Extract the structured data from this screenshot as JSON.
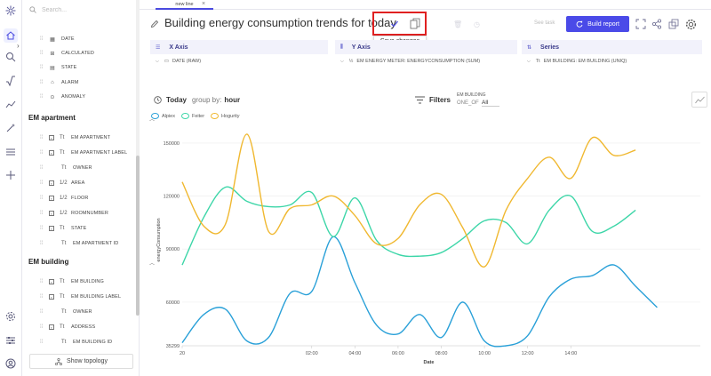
{
  "search": {
    "placeholder": "Search..."
  },
  "sidebar": {
    "fields_top": [
      {
        "label": "DATE",
        "icon": "calendar-icon"
      },
      {
        "label": "CALCULATED",
        "icon": "calculated-icon"
      },
      {
        "label": "STATE",
        "icon": "state-icon"
      },
      {
        "label": "ALARM",
        "icon": "alarm-icon"
      },
      {
        "label": "ANOMALY",
        "icon": "anomaly-icon"
      }
    ],
    "groups": [
      {
        "title": "EM apartment",
        "fields": [
          {
            "label": "EM APARTMENT",
            "icon": "text-icon",
            "type": "Tt"
          },
          {
            "label": "EM APARTMENT LABEL",
            "icon": "text-icon",
            "type": "Tt"
          },
          {
            "label": "OWNER",
            "icon": "text-icon",
            "type": "Tt"
          },
          {
            "label": "AREA",
            "icon": "numeric-icon",
            "type": "1/2"
          },
          {
            "label": "FLOOR",
            "icon": "numeric-icon",
            "type": "1/2"
          },
          {
            "label": "ROOMNUMBER",
            "icon": "numeric-icon",
            "type": "1/2"
          },
          {
            "label": "STATE",
            "icon": "text-icon",
            "type": "Tt"
          },
          {
            "label": "EM APARTMENT ID",
            "icon": "text-icon",
            "type": "Tt"
          }
        ]
      },
      {
        "title": "EM building",
        "fields": [
          {
            "label": "EM BUILDING",
            "icon": "text-icon",
            "type": "Tt"
          },
          {
            "label": "EM BUILDING LABEL",
            "icon": "text-icon",
            "type": "Tt"
          },
          {
            "label": "OWNER",
            "icon": "text-icon",
            "type": "Tt"
          },
          {
            "label": "ADDRESS",
            "icon": "text-icon",
            "type": "Tt"
          },
          {
            "label": "EM BUILDING ID",
            "icon": "text-icon",
            "type": "Tt"
          }
        ]
      }
    ],
    "topology_button": "Show topology"
  },
  "tabs": [
    {
      "label": "new line",
      "active": true
    }
  ],
  "report": {
    "title": "Building energy consumption trends for today",
    "tooltip": "Save changes",
    "see_task": "See task",
    "build_button": "Build report"
  },
  "axes": {
    "x": {
      "label": "X Axis",
      "value": "DATE (RAW)"
    },
    "y": {
      "label": "Y Axis",
      "value": "EM ENERGY METER: ENERGYCONSUMPTION (SUM)"
    },
    "series": {
      "label": "Series",
      "value": "EM BUILDING: EM BUILDING (UNIQ)"
    }
  },
  "controls": {
    "period": "Today",
    "group_by_label": "group by:",
    "group_by_value": "hour",
    "filters_label": "Filters",
    "filter_field": "EM BUILDING",
    "filter_operator": "ONE_OF",
    "filter_value": "All"
  },
  "colors": {
    "accent": "#4a4ae8",
    "highlight": "#e02020"
  },
  "chart_data": {
    "type": "line",
    "xlabel": "Date",
    "ylabel": "energyConsumption",
    "ylim": [
      35299,
      160000
    ],
    "xlim": [
      20,
      44
    ],
    "x_ticks": [
      20,
      26,
      28,
      30,
      32,
      34,
      36,
      38
    ],
    "x_tick_labels": [
      "20",
      "02:00",
      "04:00",
      "06:00",
      "08:00",
      "10:00",
      "12:00",
      "14:00"
    ],
    "y_ticks": [
      35299,
      60000,
      90000,
      120000,
      150000
    ],
    "y_tick_labels": [
      "35299",
      "60000",
      "90000",
      "120000",
      "150000"
    ],
    "series": [
      {
        "name": "Alpiex",
        "color": "#29a0d8",
        "points": [
          [
            20,
            37000
          ],
          [
            21,
            53000
          ],
          [
            22,
            56000
          ],
          [
            23,
            38000
          ],
          [
            24,
            40000
          ],
          [
            25,
            65000
          ],
          [
            26,
            66000
          ],
          [
            27,
            97000
          ],
          [
            28,
            71000
          ],
          [
            29,
            47000
          ],
          [
            30,
            42000
          ],
          [
            31,
            53000
          ],
          [
            32,
            40000
          ],
          [
            33,
            60000
          ],
          [
            34,
            38000
          ],
          [
            35,
            35299
          ],
          [
            36,
            41000
          ],
          [
            37,
            63000
          ],
          [
            38,
            73000
          ],
          [
            39,
            75000
          ],
          [
            40,
            81000
          ],
          [
            41,
            69000
          ],
          [
            42,
            57000
          ]
        ]
      },
      {
        "name": "Feiter",
        "color": "#3dd6a8",
        "points": [
          [
            20,
            81000
          ],
          [
            21,
            108000
          ],
          [
            22,
            125000
          ],
          [
            23,
            117000
          ],
          [
            24,
            114000
          ],
          [
            25,
            115000
          ],
          [
            26,
            122000
          ],
          [
            27,
            97000
          ],
          [
            28,
            119000
          ],
          [
            29,
            95000
          ],
          [
            30,
            87000
          ],
          [
            31,
            86000
          ],
          [
            32,
            88000
          ],
          [
            33,
            96000
          ],
          [
            34,
            106000
          ],
          [
            35,
            105000
          ],
          [
            36,
            93000
          ],
          [
            37,
            112000
          ],
          [
            38,
            120000
          ],
          [
            39,
            100000
          ],
          [
            40,
            103000
          ],
          [
            41,
            112000
          ]
        ]
      },
      {
        "name": "Hogurity",
        "color": "#f0b830",
        "points": [
          [
            20,
            128000
          ],
          [
            21,
            103000
          ],
          [
            22,
            104000
          ],
          [
            23,
            155000
          ],
          [
            24,
            100000
          ],
          [
            25,
            113000
          ],
          [
            26,
            115000
          ],
          [
            27,
            120000
          ],
          [
            28,
            109000
          ],
          [
            29,
            93000
          ],
          [
            30,
            96000
          ],
          [
            31,
            115000
          ],
          [
            32,
            121000
          ],
          [
            33,
            102000
          ],
          [
            34,
            80000
          ],
          [
            35,
            112000
          ],
          [
            36,
            130000
          ],
          [
            37,
            142000
          ],
          [
            38,
            130000
          ],
          [
            39,
            153000
          ],
          [
            40,
            143000
          ],
          [
            41,
            146000
          ]
        ]
      }
    ]
  }
}
